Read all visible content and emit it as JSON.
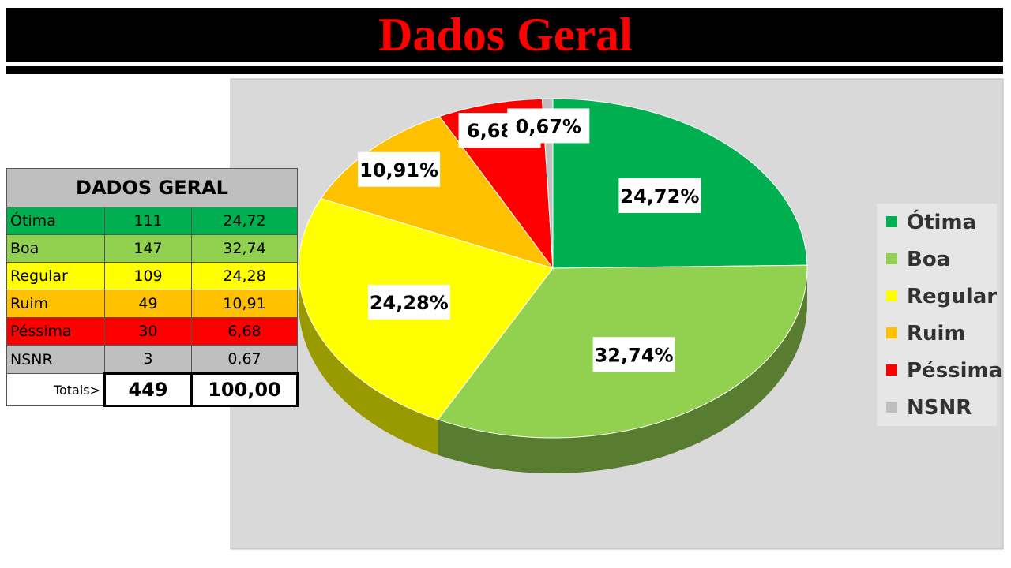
{
  "header": {
    "title": "Dados Geral"
  },
  "table": {
    "title": "DADOS GERAL",
    "rows": [
      [
        "Ótima",
        "111",
        "24,72"
      ],
      [
        "Boa",
        "147",
        "32,74"
      ],
      [
        "Regular",
        "109",
        "24,28"
      ],
      [
        "Ruim",
        "49",
        "10,91"
      ],
      [
        "Péssima",
        "30",
        "6,68"
      ],
      [
        "NSNR",
        "3",
        "0,67"
      ]
    ],
    "total": [
      "Totais>",
      "449",
      "100,00"
    ]
  },
  "chart_data": {
    "type": "pie",
    "categories": [
      "Ótima",
      "Boa",
      "Regular",
      "Ruim",
      "Péssima",
      "NSNR"
    ],
    "values": [
      24.72,
      32.74,
      24.28,
      10.91,
      6.68,
      0.67
    ],
    "value_labels": [
      "24,72%",
      "32,74%",
      "24,28%",
      "10,91%",
      "6,68%",
      "0,67%"
    ],
    "colors": [
      "#00b050",
      "#92d050",
      "#ffff00",
      "#ffc000",
      "#ff0000",
      "#bfbfbf"
    ],
    "legend": "right"
  }
}
